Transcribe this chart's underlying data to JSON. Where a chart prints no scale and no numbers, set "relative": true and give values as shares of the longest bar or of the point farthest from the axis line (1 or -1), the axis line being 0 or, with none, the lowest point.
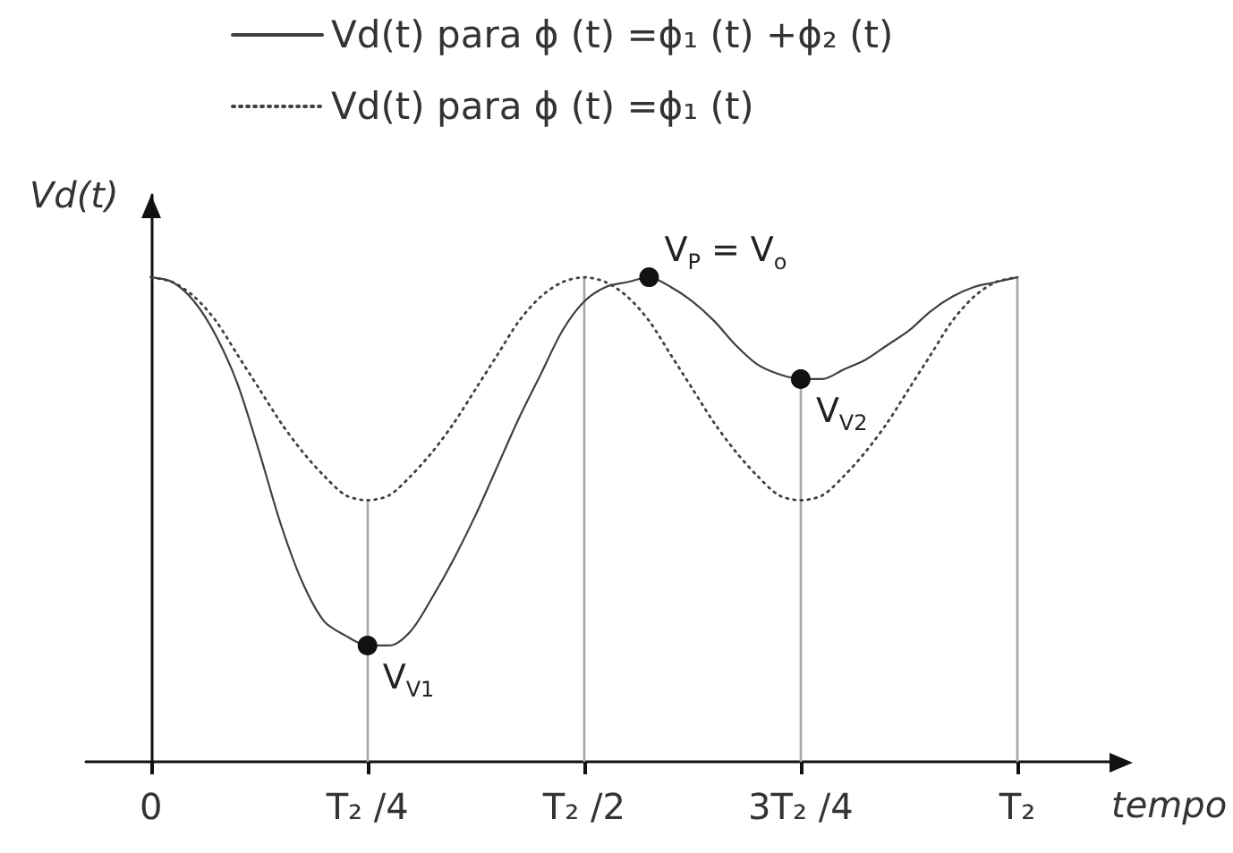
{
  "chart_data": {
    "type": "line",
    "relative": true,
    "xlabel": "tempo",
    "ylabel": "Vd(t)",
    "categories": [
      null,
      null,
      null,
      "0",
      null,
      null,
      null,
      null,
      null,
      null,
      null,
      null,
      null,
      "T₂ /4",
      null,
      null,
      null,
      null,
      null,
      null,
      null,
      null,
      null,
      "T₂ /2",
      null,
      null,
      null,
      null,
      null,
      null,
      null,
      null,
      null,
      "3T₂ /4",
      null,
      null,
      null,
      null,
      null,
      null,
      null,
      null,
      null,
      "T₂",
      null,
      null,
      null,
      null,
      null
    ],
    "series": [
      {
        "name": "Vd(t) para ϕ (t) =ϕ₁ (t) +ϕ₂ (t)",
        "color": "#404040",
        "line_style": "solid",
        "values": [
          null,
          null,
          null,
          1,
          0.99,
          0.95,
          0.88,
          0.78,
          0.64,
          0.49,
          0.37,
          0.29,
          0.26,
          0.24,
          0.24,
          0.27,
          0.34,
          0.42,
          0.51,
          0.61,
          0.71,
          0.8,
          0.89,
          0.95,
          0.98,
          0.99,
          1,
          0.98,
          0.95,
          0.91,
          0.86,
          0.82,
          0.8,
          0.79,
          0.79,
          0.81,
          0.83,
          0.86,
          0.89,
          0.93,
          0.96,
          0.98,
          0.99,
          1,
          null,
          null,
          null,
          null,
          null
        ]
      },
      {
        "name": "Vd(t) para ϕ (t) =ϕ₁ (t)",
        "color": "#404040",
        "line_style": "dotted",
        "values": [
          null,
          null,
          null,
          1,
          0.99,
          0.96,
          0.91,
          0.84,
          0.77,
          0.7,
          0.64,
          0.59,
          0.55,
          0.54,
          0.55,
          0.59,
          0.64,
          0.7,
          0.77,
          0.84,
          0.91,
          0.96,
          0.99,
          1,
          0.99,
          0.96,
          0.91,
          0.84,
          0.77,
          0.7,
          0.64,
          0.59,
          0.55,
          0.54,
          0.55,
          0.59,
          0.64,
          0.7,
          0.77,
          0.84,
          0.91,
          0.96,
          0.99,
          1,
          null,
          null,
          null,
          null,
          null
        ]
      }
    ],
    "ref_lines": [
      {
        "axis": "x",
        "value": "T₂ /4",
        "color": "#a6a6a6"
      },
      {
        "axis": "x",
        "value": "T₂ /2",
        "color": "#a6a6a6"
      },
      {
        "axis": "x",
        "value": "3T₂ /4",
        "color": "#a6a6a6"
      },
      {
        "axis": "x",
        "value": "T₂",
        "color": "#a6a6a6"
      }
    ],
    "annotations": [
      {
        "text": "V$_{V1}$",
        "x": "T₂ /4",
        "y": 0.24
      },
      "V$_{P}$ = V$_{o}$",
      {
        "text": "V$_{V2}$",
        "x": "3T₂ /4",
        "y": 0.79
      }
    ],
    "marker": "none",
    "legend": "top"
  }
}
